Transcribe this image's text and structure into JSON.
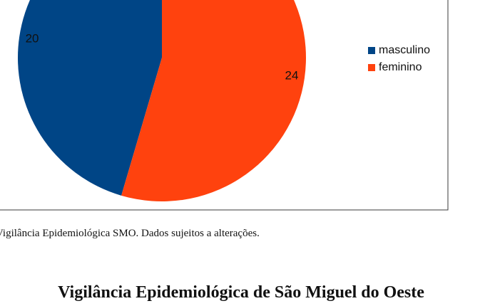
{
  "chart_data": {
    "type": "pie",
    "categories": [
      "masculino",
      "feminino"
    ],
    "values": [
      20,
      24
    ],
    "colors": [
      "#004586",
      "#ff420e"
    ],
    "legend": "right"
  },
  "caption": "Vigilância Epidemiológica SMO. Dados sujeitos a alterações.",
  "heading": "Vigilância Epidemiológica de São Miguel do Oeste"
}
